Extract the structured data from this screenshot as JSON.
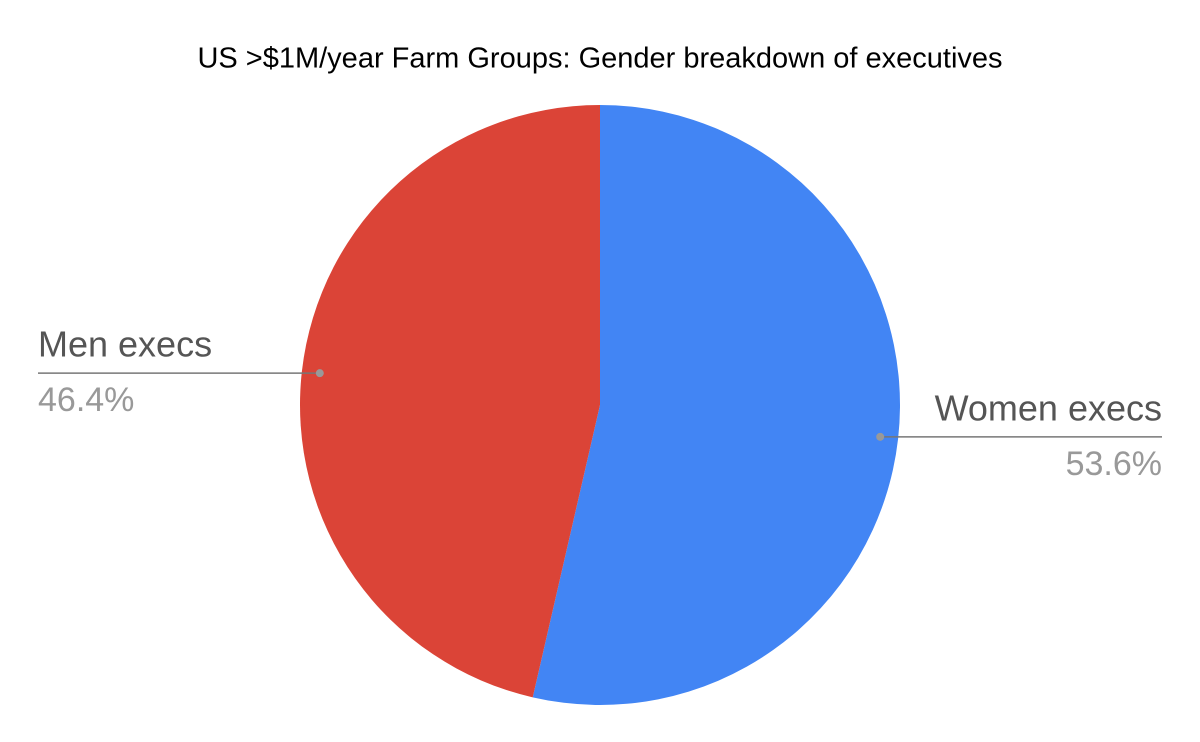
{
  "chart_data": {
    "type": "pie",
    "title": "US >$1M/year Farm Groups: Gender breakdown of executives",
    "categories": [
      "Women execs",
      "Men execs"
    ],
    "values": [
      53.6,
      46.4
    ],
    "value_labels": [
      "53.6%",
      "46.4%"
    ],
    "colors": [
      "#4285f4",
      "#db4437"
    ]
  }
}
